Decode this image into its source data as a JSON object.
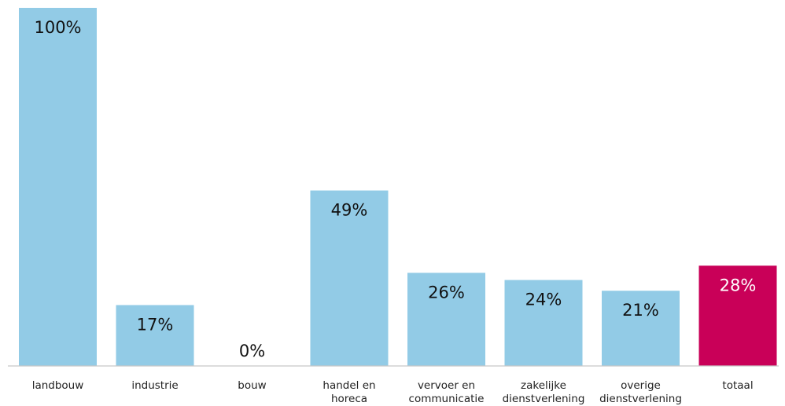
{
  "chart_data": {
    "type": "bar",
    "categories": [
      [
        "landbouw"
      ],
      [
        "industrie"
      ],
      [
        "bouw"
      ],
      [
        "handel en",
        "horeca"
      ],
      [
        "vervoer en",
        "communicatie"
      ],
      [
        "zakelijke",
        "dienstverlening"
      ],
      [
        "overige",
        "dienstverlening"
      ],
      [
        "totaal"
      ]
    ],
    "values": [
      100,
      17,
      0,
      49,
      26,
      24,
      21,
      28
    ],
    "value_labels": [
      "100%",
      "17%",
      "0%",
      "49%",
      "26%",
      "24%",
      "21%",
      "28%"
    ],
    "ylim": [
      0,
      100
    ],
    "grid": false,
    "legend": "none",
    "colors": {
      "default": "#92cbe6",
      "highlight": "#c90058",
      "axis": "#c8c8c8",
      "label_dark": "#111111",
      "label_light": "#ffffff"
    },
    "highlight_index": 7
  }
}
